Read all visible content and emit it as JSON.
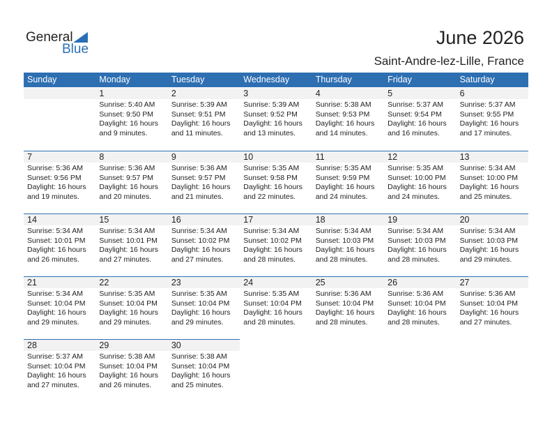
{
  "logo": {
    "text1": "General",
    "text2": "Blue"
  },
  "title": "June 2026",
  "location": "Saint-Andre-lez-Lille, France",
  "weekdays": [
    "Sunday",
    "Monday",
    "Tuesday",
    "Wednesday",
    "Thursday",
    "Friday",
    "Saturday"
  ],
  "first_weekday_index": 1,
  "days": [
    {
      "day": "1",
      "sunrise": "Sunrise: 5:40 AM",
      "sunset": "Sunset: 9:50 PM",
      "daylight1": "Daylight: 16 hours",
      "daylight2": "and 9 minutes."
    },
    {
      "day": "2",
      "sunrise": "Sunrise: 5:39 AM",
      "sunset": "Sunset: 9:51 PM",
      "daylight1": "Daylight: 16 hours",
      "daylight2": "and 11 minutes."
    },
    {
      "day": "3",
      "sunrise": "Sunrise: 5:39 AM",
      "sunset": "Sunset: 9:52 PM",
      "daylight1": "Daylight: 16 hours",
      "daylight2": "and 13 minutes."
    },
    {
      "day": "4",
      "sunrise": "Sunrise: 5:38 AM",
      "sunset": "Sunset: 9:53 PM",
      "daylight1": "Daylight: 16 hours",
      "daylight2": "and 14 minutes."
    },
    {
      "day": "5",
      "sunrise": "Sunrise: 5:37 AM",
      "sunset": "Sunset: 9:54 PM",
      "daylight1": "Daylight: 16 hours",
      "daylight2": "and 16 minutes."
    },
    {
      "day": "6",
      "sunrise": "Sunrise: 5:37 AM",
      "sunset": "Sunset: 9:55 PM",
      "daylight1": "Daylight: 16 hours",
      "daylight2": "and 17 minutes."
    },
    {
      "day": "7",
      "sunrise": "Sunrise: 5:36 AM",
      "sunset": "Sunset: 9:56 PM",
      "daylight1": "Daylight: 16 hours",
      "daylight2": "and 19 minutes."
    },
    {
      "day": "8",
      "sunrise": "Sunrise: 5:36 AM",
      "sunset": "Sunset: 9:57 PM",
      "daylight1": "Daylight: 16 hours",
      "daylight2": "and 20 minutes."
    },
    {
      "day": "9",
      "sunrise": "Sunrise: 5:36 AM",
      "sunset": "Sunset: 9:57 PM",
      "daylight1": "Daylight: 16 hours",
      "daylight2": "and 21 minutes."
    },
    {
      "day": "10",
      "sunrise": "Sunrise: 5:35 AM",
      "sunset": "Sunset: 9:58 PM",
      "daylight1": "Daylight: 16 hours",
      "daylight2": "and 22 minutes."
    },
    {
      "day": "11",
      "sunrise": "Sunrise: 5:35 AM",
      "sunset": "Sunset: 9:59 PM",
      "daylight1": "Daylight: 16 hours",
      "daylight2": "and 24 minutes."
    },
    {
      "day": "12",
      "sunrise": "Sunrise: 5:35 AM",
      "sunset": "Sunset: 10:00 PM",
      "daylight1": "Daylight: 16 hours",
      "daylight2": "and 24 minutes."
    },
    {
      "day": "13",
      "sunrise": "Sunrise: 5:34 AM",
      "sunset": "Sunset: 10:00 PM",
      "daylight1": "Daylight: 16 hours",
      "daylight2": "and 25 minutes."
    },
    {
      "day": "14",
      "sunrise": "Sunrise: 5:34 AM",
      "sunset": "Sunset: 10:01 PM",
      "daylight1": "Daylight: 16 hours",
      "daylight2": "and 26 minutes."
    },
    {
      "day": "15",
      "sunrise": "Sunrise: 5:34 AM",
      "sunset": "Sunset: 10:01 PM",
      "daylight1": "Daylight: 16 hours",
      "daylight2": "and 27 minutes."
    },
    {
      "day": "16",
      "sunrise": "Sunrise: 5:34 AM",
      "sunset": "Sunset: 10:02 PM",
      "daylight1": "Daylight: 16 hours",
      "daylight2": "and 27 minutes."
    },
    {
      "day": "17",
      "sunrise": "Sunrise: 5:34 AM",
      "sunset": "Sunset: 10:02 PM",
      "daylight1": "Daylight: 16 hours",
      "daylight2": "and 28 minutes."
    },
    {
      "day": "18",
      "sunrise": "Sunrise: 5:34 AM",
      "sunset": "Sunset: 10:03 PM",
      "daylight1": "Daylight: 16 hours",
      "daylight2": "and 28 minutes."
    },
    {
      "day": "19",
      "sunrise": "Sunrise: 5:34 AM",
      "sunset": "Sunset: 10:03 PM",
      "daylight1": "Daylight: 16 hours",
      "daylight2": "and 28 minutes."
    },
    {
      "day": "20",
      "sunrise": "Sunrise: 5:34 AM",
      "sunset": "Sunset: 10:03 PM",
      "daylight1": "Daylight: 16 hours",
      "daylight2": "and 29 minutes."
    },
    {
      "day": "21",
      "sunrise": "Sunrise: 5:34 AM",
      "sunset": "Sunset: 10:04 PM",
      "daylight1": "Daylight: 16 hours",
      "daylight2": "and 29 minutes."
    },
    {
      "day": "22",
      "sunrise": "Sunrise: 5:35 AM",
      "sunset": "Sunset: 10:04 PM",
      "daylight1": "Daylight: 16 hours",
      "daylight2": "and 29 minutes."
    },
    {
      "day": "23",
      "sunrise": "Sunrise: 5:35 AM",
      "sunset": "Sunset: 10:04 PM",
      "daylight1": "Daylight: 16 hours",
      "daylight2": "and 29 minutes."
    },
    {
      "day": "24",
      "sunrise": "Sunrise: 5:35 AM",
      "sunset": "Sunset: 10:04 PM",
      "daylight1": "Daylight: 16 hours",
      "daylight2": "and 28 minutes."
    },
    {
      "day": "25",
      "sunrise": "Sunrise: 5:36 AM",
      "sunset": "Sunset: 10:04 PM",
      "daylight1": "Daylight: 16 hours",
      "daylight2": "and 28 minutes."
    },
    {
      "day": "26",
      "sunrise": "Sunrise: 5:36 AM",
      "sunset": "Sunset: 10:04 PM",
      "daylight1": "Daylight: 16 hours",
      "daylight2": "and 28 minutes."
    },
    {
      "day": "27",
      "sunrise": "Sunrise: 5:36 AM",
      "sunset": "Sunset: 10:04 PM",
      "daylight1": "Daylight: 16 hours",
      "daylight2": "and 27 minutes."
    },
    {
      "day": "28",
      "sunrise": "Sunrise: 5:37 AM",
      "sunset": "Sunset: 10:04 PM",
      "daylight1": "Daylight: 16 hours",
      "daylight2": "and 27 minutes."
    },
    {
      "day": "29",
      "sunrise": "Sunrise: 5:38 AM",
      "sunset": "Sunset: 10:04 PM",
      "daylight1": "Daylight: 16 hours",
      "daylight2": "and 26 minutes."
    },
    {
      "day": "30",
      "sunrise": "Sunrise: 5:38 AM",
      "sunset": "Sunset: 10:04 PM",
      "daylight1": "Daylight: 16 hours",
      "daylight2": "and 25 minutes."
    }
  ]
}
